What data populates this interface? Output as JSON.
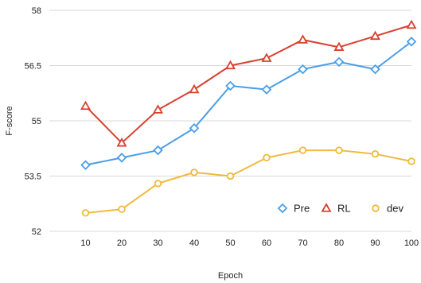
{
  "chart_data": {
    "type": "line",
    "title": "",
    "xlabel": "Epoch",
    "ylabel": "F-score",
    "x": [
      10,
      20,
      30,
      40,
      50,
      60,
      70,
      80,
      90,
      100
    ],
    "x_ticks": [
      "10",
      "20",
      "30",
      "40",
      "50",
      "60",
      "70",
      "80",
      "90",
      "100"
    ],
    "y_ticks": [
      "52",
      "53.5",
      "55",
      "56.5",
      "58"
    ],
    "xlim": [
      0,
      100
    ],
    "ylim": [
      52,
      58
    ],
    "grid": "horizontal",
    "legend_position": "bottom-right",
    "series": [
      {
        "name": "Pre",
        "marker": "diamond",
        "color": "#4a9ee8",
        "values": [
          53.8,
          54.0,
          54.2,
          54.8,
          55.95,
          55.85,
          56.4,
          56.6,
          56.4,
          57.15
        ]
      },
      {
        "name": "RL",
        "marker": "triangle",
        "color": "#d8412f",
        "values": [
          55.4,
          54.4,
          55.3,
          55.85,
          56.5,
          56.7,
          57.2,
          57.0,
          57.3,
          57.6
        ]
      },
      {
        "name": "dev",
        "marker": "circle",
        "color": "#efba3e",
        "values": [
          52.5,
          52.6,
          53.3,
          53.6,
          53.5,
          54.0,
          54.2,
          54.2,
          54.1,
          53.9
        ]
      }
    ]
  }
}
